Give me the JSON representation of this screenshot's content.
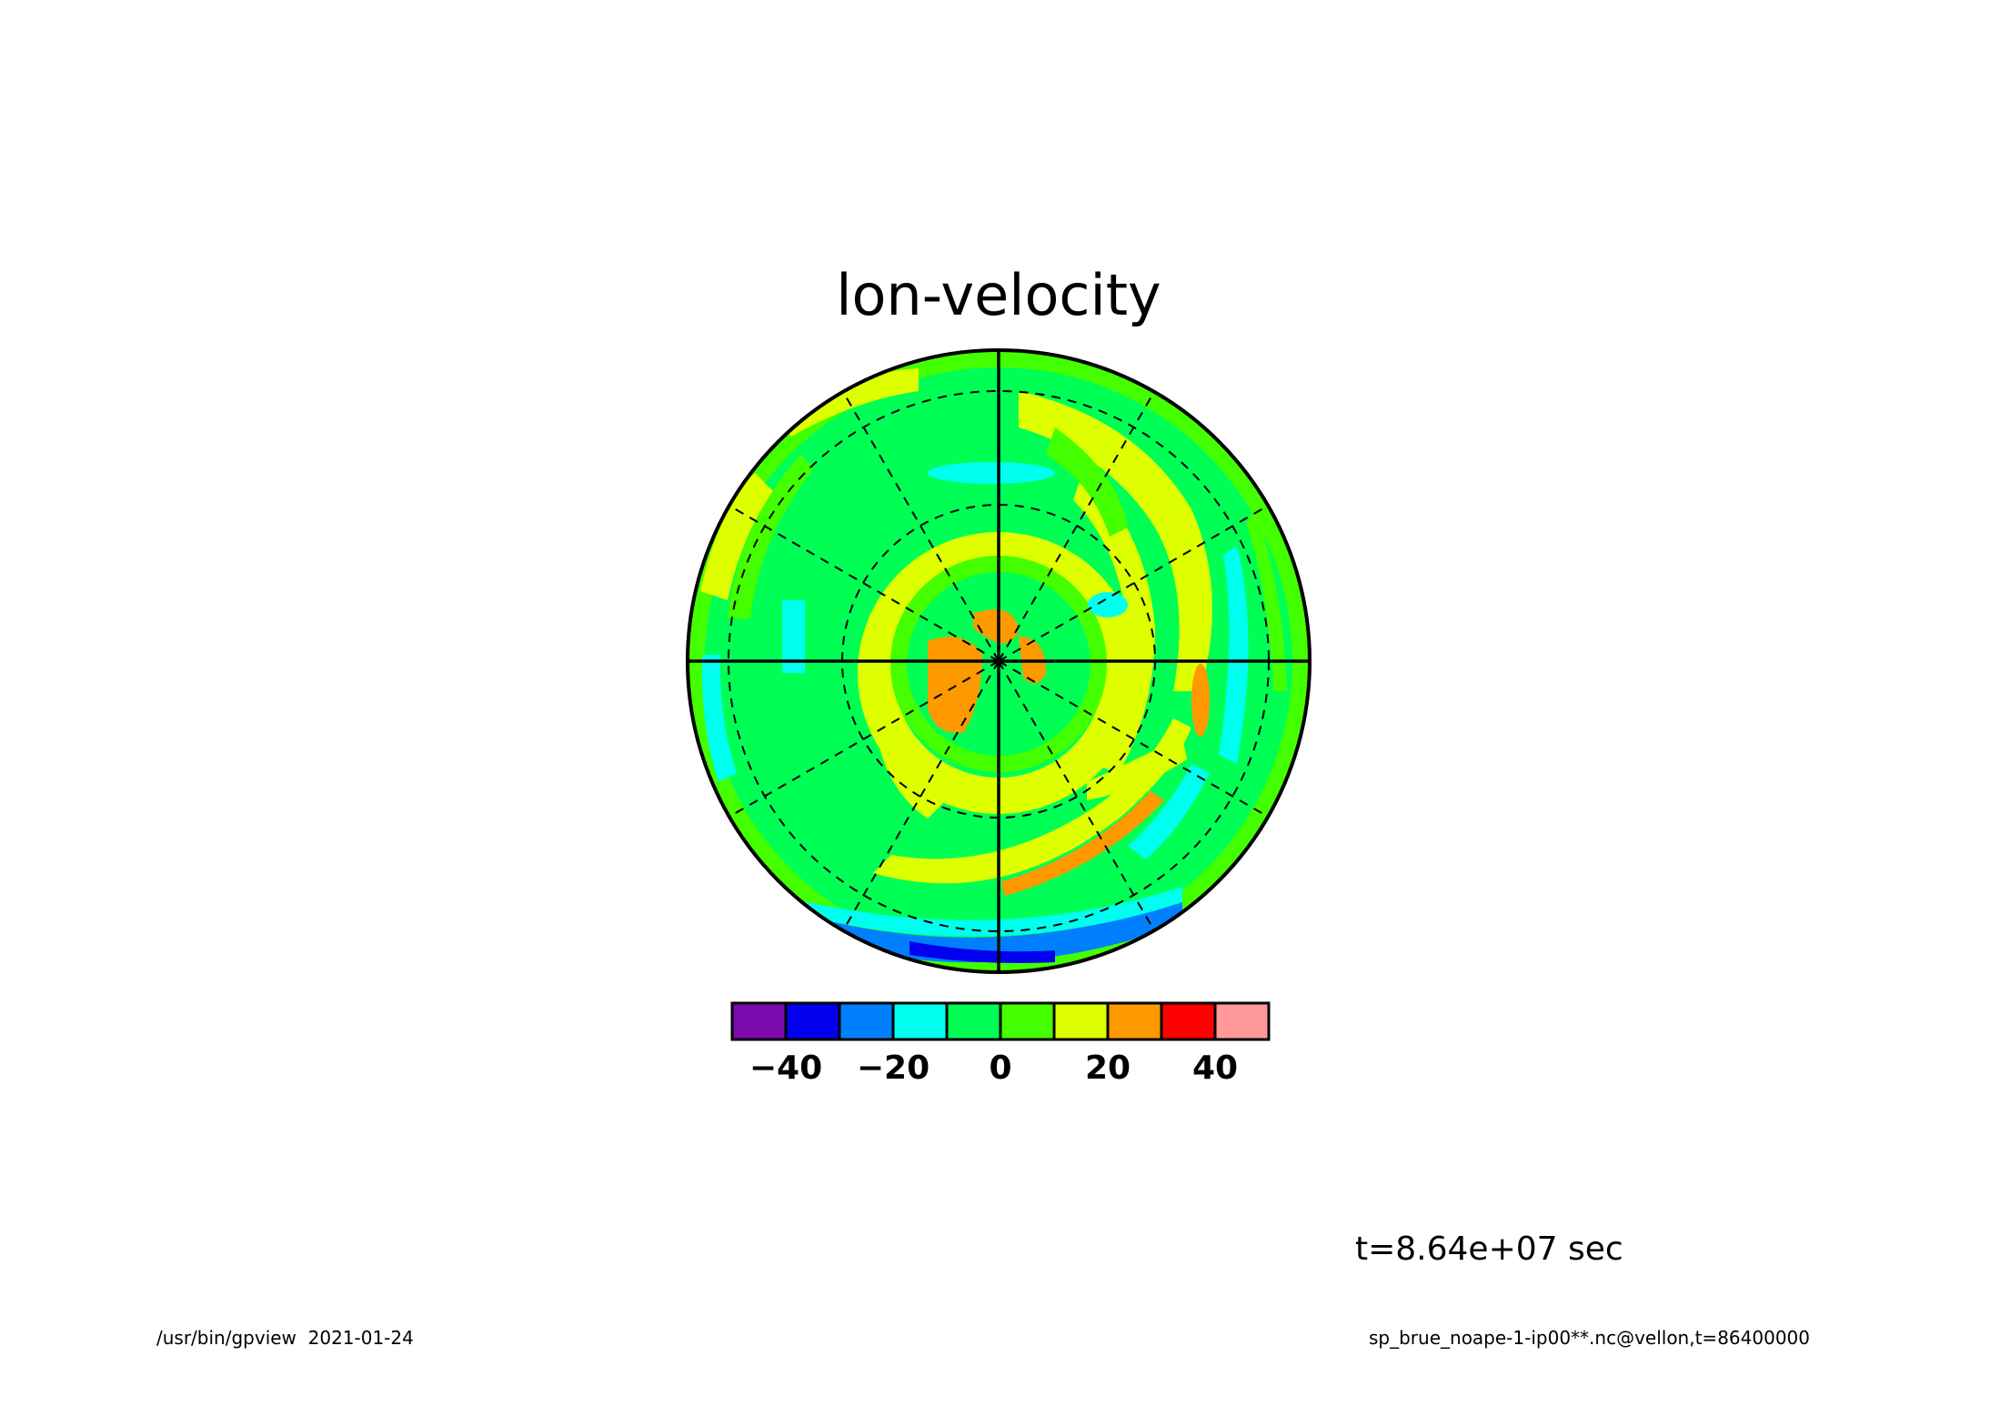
{
  "chart_data": {
    "type": "heatmap",
    "projection": "polar stereographic",
    "title": "lon-velocity",
    "colorbar": {
      "colors": [
        "#7c0bad",
        "#0000ee",
        "#0080ff",
        "#00ffee",
        "#00ff55",
        "#44ff00",
        "#ddff00",
        "#ff9900",
        "#ff0000",
        "#ff9999"
      ],
      "ticks": [
        "−40",
        "−20",
        "0",
        "20",
        "40"
      ],
      "tick_values": [
        -40,
        -20,
        0,
        20,
        40
      ],
      "range": [
        -50,
        50
      ],
      "interval": 10
    },
    "grid": {
      "meridians_deg": [
        0,
        30,
        60,
        90,
        120,
        150,
        180,
        210,
        240,
        270,
        300,
        330
      ],
      "latitude_circles": 3
    },
    "time_label": "t=8.64e+07 sec"
  },
  "footer": {
    "left": "/usr/bin/gpview  2021-01-24",
    "right": "sp_brue_noape-1-ip00**.nc@vellon,t=86400000"
  }
}
